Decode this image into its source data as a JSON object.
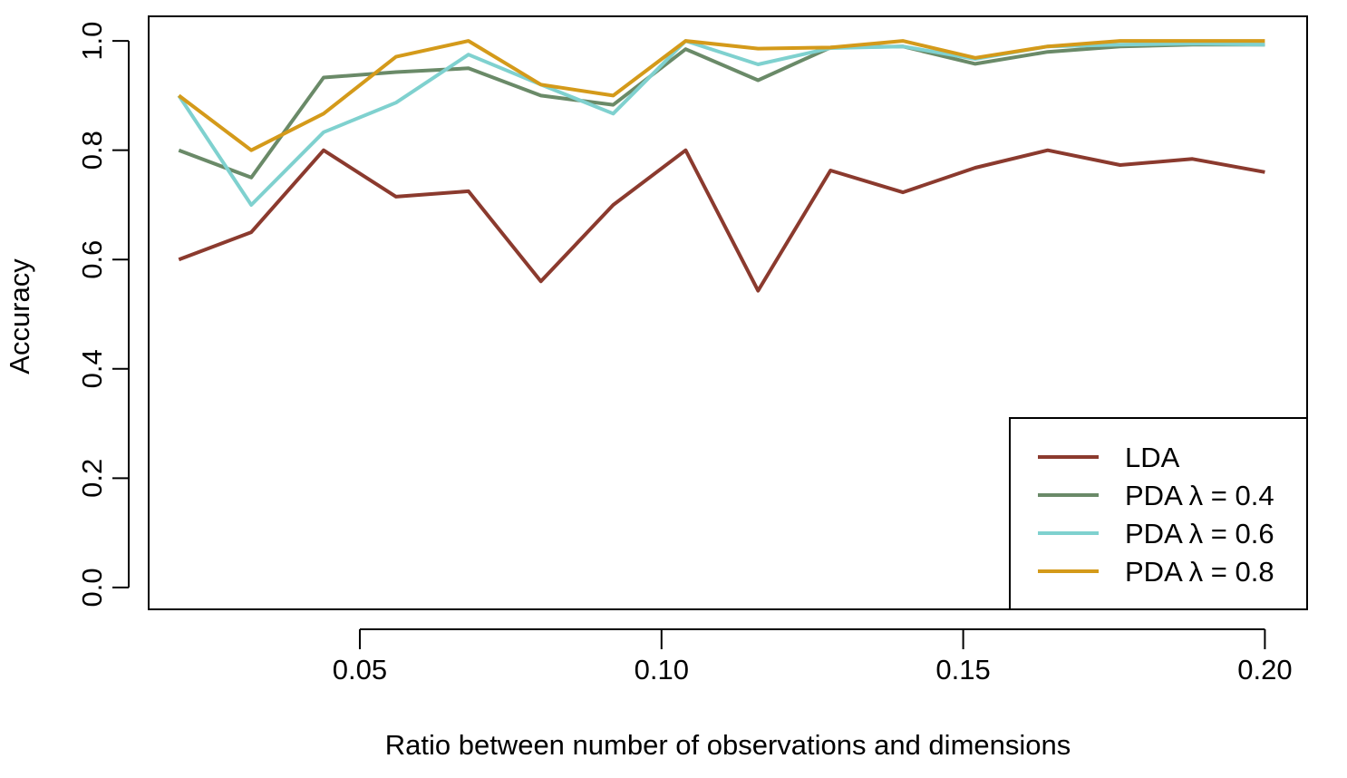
{
  "chart_data": {
    "type": "line",
    "xlabel": "Ratio between number of observations and dimensions",
    "ylabel": "Accuracy",
    "xlim": [
      0.015,
      0.207
    ],
    "ylim": [
      -0.04,
      1.045
    ],
    "x_ticks": [
      0.05,
      0.1,
      0.15,
      0.2
    ],
    "x_tick_labels": [
      "0.05",
      "0.10",
      "0.15",
      "0.20"
    ],
    "y_ticks": [
      0.0,
      0.2,
      0.4,
      0.6,
      0.8,
      1.0
    ],
    "y_tick_labels": [
      "0.0",
      "0.2",
      "0.4",
      "0.6",
      "0.8",
      "1.0"
    ],
    "grid": false,
    "legend_position": "bottom-right",
    "x": [
      0.02,
      0.032,
      0.044,
      0.056,
      0.068,
      0.08,
      0.092,
      0.104,
      0.116,
      0.128,
      0.14,
      0.152,
      0.164,
      0.176,
      0.188,
      0.2
    ],
    "series": [
      {
        "name": "LDA",
        "color": "#8b3a2e",
        "values": [
          0.6,
          0.65,
          0.8,
          0.715,
          0.725,
          0.56,
          0.7,
          0.8,
          0.543,
          0.763,
          0.723,
          0.768,
          0.8,
          0.773,
          0.784,
          0.76
        ]
      },
      {
        "name": "PDA λ = 0.4",
        "color": "#6a8a68",
        "values": [
          0.8,
          0.75,
          0.933,
          0.943,
          0.95,
          0.9,
          0.883,
          0.985,
          0.928,
          0.988,
          0.99,
          0.958,
          0.98,
          0.99,
          0.993,
          0.993
        ]
      },
      {
        "name": "PDA λ = 0.6",
        "color": "#7fd1cf",
        "values": [
          0.9,
          0.7,
          0.833,
          0.887,
          0.975,
          0.92,
          0.867,
          1.0,
          0.957,
          0.987,
          0.99,
          0.967,
          0.99,
          0.993,
          0.995,
          0.993
        ]
      },
      {
        "name": "PDA λ = 0.8",
        "color": "#d49a1a",
        "values": [
          0.9,
          0.8,
          0.867,
          0.971,
          1.0,
          0.92,
          0.9,
          1.0,
          0.986,
          0.988,
          1.0,
          0.969,
          0.99,
          1.0,
          1.0,
          1.0
        ]
      }
    ]
  }
}
